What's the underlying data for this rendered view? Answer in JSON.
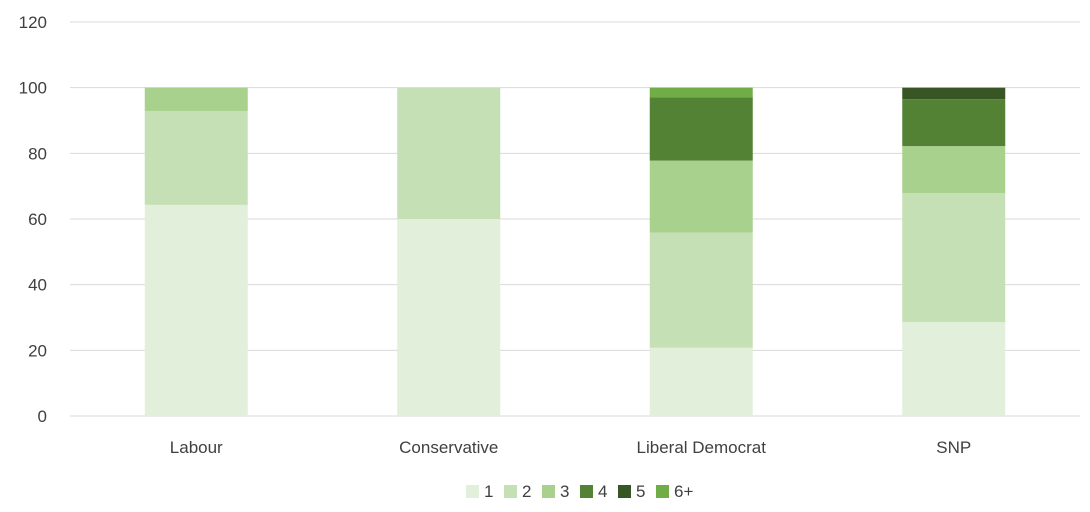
{
  "chart_data": {
    "type": "bar",
    "stacked": true,
    "title": "",
    "xlabel": "",
    "ylabel": "",
    "ylim": [
      0,
      120
    ],
    "yticks": [
      0,
      20,
      40,
      60,
      80,
      100,
      120
    ],
    "grid": true,
    "legend_position": "bottom",
    "categories": [
      "Labour",
      "Conservative",
      "Liberal Democrat",
      "SNP"
    ],
    "series": [
      {
        "name": "1",
        "color": "#e2efda",
        "values": [
          64.3,
          60,
          20.8,
          28.6
        ]
      },
      {
        "name": "2",
        "color": "#c5e0b4",
        "values": [
          28.6,
          40,
          35.1,
          39.3
        ]
      },
      {
        "name": "3",
        "color": "#a9d18e",
        "values": [
          7.1,
          0,
          21.9,
          14.3
        ]
      },
      {
        "name": "4",
        "color": "#548235",
        "values": [
          0,
          0,
          19.3,
          14.3
        ]
      },
      {
        "name": "5",
        "color": "#375623",
        "values": [
          0,
          0,
          0,
          3.5
        ]
      },
      {
        "name": "6+",
        "color": "#70ad47",
        "values": [
          0,
          0,
          2.9,
          0
        ]
      }
    ]
  }
}
